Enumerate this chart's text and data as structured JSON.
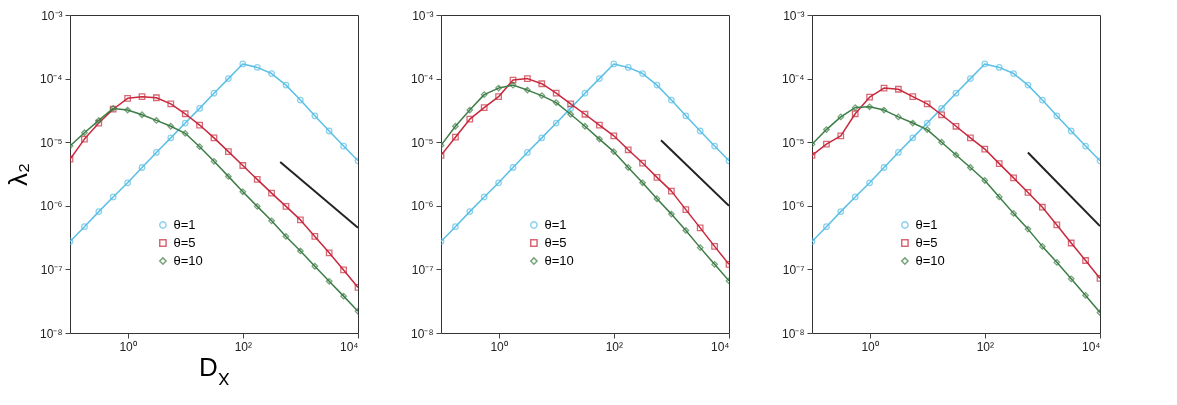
{
  "chart_data": [
    {
      "type": "line",
      "xlabel": "D$_{X}$",
      "ylabel": "λ₂",
      "log": "xy",
      "legend": "bottom",
      "xlim": [
        0.1,
        10000
      ],
      "xticks": [
        {
          "value": 1,
          "label": "10⁰"
        },
        {
          "value": 100,
          "label": "10²"
        },
        {
          "value": 10000,
          "label": "10⁴"
        }
      ],
      "ylim": [
        1e-08,
        0.001
      ],
      "yticks": [
        {
          "value": 1e-08,
          "label": "10⁻⁸"
        },
        {
          "value": 1e-07,
          "label": "10⁻⁷"
        },
        {
          "value": 1e-06,
          "label": "10⁻⁶"
        },
        {
          "value": 1e-05,
          "label": "10⁻⁵"
        },
        {
          "value": 0.0001,
          "label": "10⁻⁴"
        },
        {
          "value": 0.001,
          "label": "10⁻³"
        }
      ],
      "x": [
        0.1,
        0.178,
        0.316,
        0.562,
        1,
        1.78,
        3.16,
        5.62,
        10,
        17.8,
        31.6,
        56.2,
        100,
        178,
        316,
        562,
        1000,
        1780,
        3160,
        5620,
        10000
      ],
      "series": [
        {
          "name": "θ=1",
          "color": "#5bbfe6",
          "marker": "circle",
          "values": [
            2.75e-07,
            4.7e-07,
            8.1e-07,
            1.38e-06,
            2.3e-06,
            4e-06,
            6.9e-06,
            1.17e-05,
            2e-05,
            3.4e-05,
            5.9e-05,
            0.0001,
            0.00017,
            0.00015,
            0.00012,
            7.9e-05,
            4.6e-05,
            2.6e-05,
            1.5e-05,
            8.7e-06,
            5.1e-06
          ]
        },
        {
          "name": "θ=5",
          "color": "#c8283c",
          "marker": "square",
          "values": [
            5.4e-06,
            1.12e-05,
            2e-05,
            3.3e-05,
            4.9e-05,
            5.2e-05,
            5e-05,
            4e-05,
            2.8e-05,
            1.86e-05,
            1.17e-05,
            7.1e-06,
            4.3e-06,
            2.6e-06,
            1.58e-06,
            9.8e-07,
            6e-07,
            3.3e-07,
            1.82e-07,
            9.8e-08,
            5.2e-08
          ]
        },
        {
          "name": "θ=10",
          "color": "#3c7d46",
          "marker": "diamond",
          "values": [
            8.7e-06,
            1.41e-05,
            2.2e-05,
            3.4e-05,
            3.2e-05,
            2.7e-05,
            2.2e-05,
            1.78e-05,
            1.38e-05,
            8.5e-06,
            5e-06,
            2.9e-06,
            1.66e-06,
            9.8e-07,
            5.8e-07,
            3.3e-07,
            1.95e-07,
            1.12e-07,
            6.5e-08,
            3.8e-08,
            2.2e-08
          ]
        },
        {
          "type": "line",
          "color": "#222222",
          "marker": "none",
          "x": [
            446,
            10000
          ],
          "values": [
            4.9e-06,
            4.5e-07
          ]
        }
      ]
    },
    {
      "type": "line",
      "log": "xy",
      "legend": "bottom",
      "xlim": [
        0.1,
        10000
      ],
      "xticks": [
        {
          "value": 1,
          "label": "10⁰"
        },
        {
          "value": 100,
          "label": "10²"
        },
        {
          "value": 10000,
          "label": "10⁴"
        }
      ],
      "ylim": [
        1e-08,
        0.001
      ],
      "yticks": [
        {
          "value": 1e-08,
          "label": "10⁻⁸"
        },
        {
          "value": 1e-07,
          "label": "10⁻⁷"
        },
        {
          "value": 1e-06,
          "label": "10⁻⁶"
        },
        {
          "value": 1e-05,
          "label": "10⁻⁵"
        },
        {
          "value": 0.0001,
          "label": "10⁻⁴"
        },
        {
          "value": 0.001,
          "label": "10⁻³"
        }
      ],
      "x": [
        0.1,
        0.178,
        0.316,
        0.562,
        1,
        1.78,
        3.16,
        5.62,
        10,
        17.8,
        31.6,
        56.2,
        100,
        178,
        316,
        562,
        1000,
        1780,
        3160,
        5620,
        10000
      ],
      "series": [
        {
          "name": "θ=1",
          "color": "#5bbfe6",
          "marker": "circle",
          "values": [
            2.75e-07,
            4.7e-07,
            8.1e-07,
            1.38e-06,
            2.3e-06,
            4e-06,
            6.9e-06,
            1.17e-05,
            2e-05,
            3.4e-05,
            5.9e-05,
            0.0001,
            0.00017,
            0.00015,
            0.00012,
            7.9e-05,
            4.6e-05,
            2.6e-05,
            1.5e-05,
            8.7e-06,
            5.1e-06
          ]
        },
        {
          "name": "θ=5",
          "color": "#c8283c",
          "marker": "square",
          "values": [
            6.2e-06,
            1.2e-05,
            2.3e-05,
            3.5e-05,
            5.2e-05,
            9.5e-05,
            0.0001,
            8.3e-05,
            5.9e-05,
            4e-05,
            2.75e-05,
            1.86e-05,
            1.26e-05,
            7.6e-06,
            4.7e-06,
            2.8e-06,
            1.7e-06,
            8.7e-07,
            4.5e-07,
            2.3e-07,
            1.2e-07
          ]
        },
        {
          "name": "θ=10",
          "color": "#3c7d46",
          "marker": "diamond",
          "values": [
            8.9e-06,
            1.78e-05,
            3.2e-05,
            5.6e-05,
            7.1e-05,
            7.9e-05,
            6.6e-05,
            5.4e-05,
            4.2e-05,
            2.75e-05,
            1.78e-05,
            1.12e-05,
            7.1e-06,
            4e-06,
            2.3e-06,
            1.29e-06,
            7.4e-07,
            4.1e-07,
            2.2e-07,
            1.2e-07,
            6.6e-08
          ]
        },
        {
          "type": "line",
          "color": "#222222",
          "marker": "none",
          "x": [
            660,
            10000
          ],
          "values": [
            1.07e-05,
            1e-06
          ]
        }
      ]
    },
    {
      "type": "line",
      "log": "xy",
      "legend": "bottom",
      "xlim": [
        0.1,
        10000
      ],
      "xticks": [
        {
          "value": 1,
          "label": "10⁰"
        },
        {
          "value": 100,
          "label": "10²"
        },
        {
          "value": 10000,
          "label": "10⁴"
        }
      ],
      "ylim": [
        1e-08,
        0.001
      ],
      "yticks": [
        {
          "value": 1e-08,
          "label": "10⁻⁸"
        },
        {
          "value": 1e-07,
          "label": "10⁻⁷"
        },
        {
          "value": 1e-06,
          "label": "10⁻⁶"
        },
        {
          "value": 1e-05,
          "label": "10⁻⁵"
        },
        {
          "value": 0.0001,
          "label": "10⁻⁴"
        },
        {
          "value": 0.001,
          "label": "10⁻³"
        }
      ],
      "x": [
        0.1,
        0.178,
        0.316,
        0.562,
        1,
        1.78,
        3.16,
        5.62,
        10,
        17.8,
        31.6,
        56.2,
        100,
        178,
        316,
        562,
        1000,
        1780,
        3160,
        5620,
        10000
      ],
      "series": [
        {
          "name": "θ=1",
          "color": "#5bbfe6",
          "marker": "circle",
          "values": [
            2.75e-07,
            4.7e-07,
            8.1e-07,
            1.38e-06,
            2.3e-06,
            4e-06,
            6.9e-06,
            1.17e-05,
            2e-05,
            3.4e-05,
            5.9e-05,
            0.0001,
            0.00017,
            0.00015,
            0.00012,
            7.9e-05,
            4.6e-05,
            2.6e-05,
            1.5e-05,
            8.7e-06,
            5.1e-06
          ]
        },
        {
          "name": "θ=5",
          "color": "#c8283c",
          "marker": "square",
          "values": [
            6.2e-06,
            9.3e-06,
            1.26e-05,
            2.8e-05,
            5.1e-05,
            7.1e-05,
            6.8e-05,
            5.2e-05,
            4e-05,
            2.7e-05,
            1.78e-05,
            1.17e-05,
            7.8e-06,
            4.6e-06,
            2.75e-06,
            1.62e-06,
            9.5e-07,
            5e-07,
            2.6e-07,
            1.38e-07,
            7.2e-08
          ]
        },
        {
          "name": "θ=10",
          "color": "#3c7d46",
          "marker": "diamond",
          "values": [
            9.3e-06,
            1.58e-05,
            2.5e-05,
            3.5e-05,
            3.6e-05,
            3.2e-05,
            2.5e-05,
            2e-05,
            1.58e-05,
            1e-05,
            6.3e-06,
            4e-06,
            2.5e-06,
            1.38e-06,
            7.6e-07,
            4.3e-07,
            2.3e-07,
            1.29e-07,
            7.1e-08,
            3.9e-08,
            2.1e-08
          ]
        },
        {
          "type": "line",
          "color": "#222222",
          "marker": "none",
          "x": [
            560,
            10000
          ],
          "values": [
            6.9e-06,
            4.8e-07
          ]
        }
      ]
    }
  ]
}
